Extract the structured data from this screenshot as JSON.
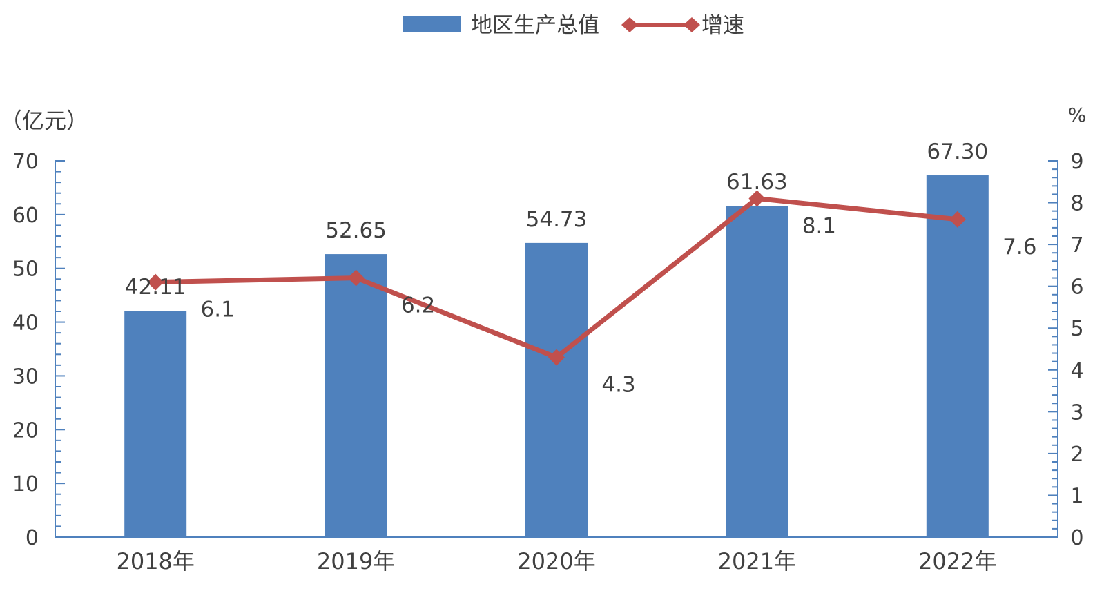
{
  "chart_data": {
    "type": "bar",
    "categories": [
      "2018年",
      "2019年",
      "2020年",
      "2021年",
      "2022年"
    ],
    "series": [
      {
        "name": "地区生产总值",
        "type": "bar",
        "axis": "left",
        "values": [
          42.11,
          52.65,
          54.73,
          61.63,
          67.3
        ],
        "labels": [
          "42.11",
          "52.65",
          "54.73",
          "61.63",
          "67.30"
        ],
        "color": "#4f81bd"
      },
      {
        "name": "增速",
        "type": "line",
        "axis": "right",
        "values": [
          6.1,
          6.2,
          4.3,
          8.1,
          7.6
        ],
        "labels": [
          "6.1",
          "6.2",
          "4.3",
          "8.1",
          "7.6"
        ],
        "color": "#c0504d"
      }
    ],
    "ylabel_left": "（亿元）",
    "ylabel_right": "%",
    "ylim_left": [
      0,
      70
    ],
    "ylim_right": [
      0,
      9
    ],
    "yticks_left": [
      "0",
      "10",
      "20",
      "30",
      "40",
      "50",
      "60",
      "70"
    ],
    "yticks_right": [
      "0",
      "1",
      "2",
      "3",
      "4",
      "5",
      "6",
      "7",
      "8",
      "9"
    ],
    "axis_color": "#4f81bd",
    "grid": false,
    "legend_position": "top-center"
  }
}
